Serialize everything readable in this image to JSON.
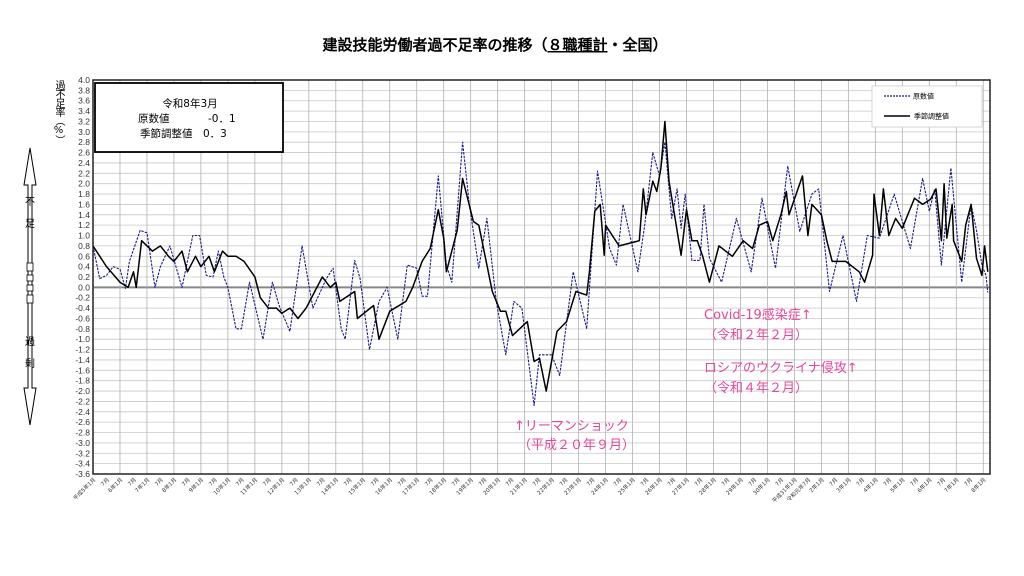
{
  "chart_data": {
    "type": "line",
    "title": "建設技能労働者過不足率の推移（８職種計・全国）",
    "title_parts": [
      "建設技能労働者過不足率の推移（",
      "８職種計",
      "・全国）"
    ],
    "ylabel": "過不足率（%）",
    "ylim": [
      -3.6,
      4.0
    ],
    "ystep": 0.2,
    "xlim": [
      1993.0,
      2026.25
    ],
    "grid": true,
    "legend_position": "top-right",
    "x_tick_labels": [
      "平成5年1月",
      "7月",
      "6年1月",
      "7月",
      "7年1月",
      "7月",
      "8年1月",
      "7月",
      "9年1月",
      "7月",
      "10年1月",
      "7月",
      "11年1月",
      "7月",
      "12年1月",
      "7月",
      "13年1月",
      "7月",
      "14年1月",
      "7月",
      "15年1月",
      "7月",
      "16年1月",
      "7月",
      "17年1月",
      "7月",
      "18年1月",
      "7月",
      "19年1月",
      "7月",
      "20年1月",
      "7月",
      "21年1月",
      "7月",
      "22年1月",
      "7月",
      "23年1月",
      "7月",
      "24年1月",
      "7月",
      "25年1月",
      "7月",
      "26年1月",
      "7月",
      "27年1月",
      "7月",
      "28年1月",
      "7月",
      "29年1月",
      "7月",
      "30年1月",
      "7月",
      "平成31年1月",
      "令和元年7月",
      "2年1月",
      "7月",
      "3年1月",
      "7月",
      "4年1月",
      "7月",
      "5年1月",
      "7月",
      "6年1月",
      "7月",
      "7年1月",
      "7月",
      "8年1月"
    ],
    "series": [
      {
        "name": "原数値",
        "color": "#1a1a8c",
        "style": "dashed",
        "points": [
          [
            1993.0,
            0.8
          ],
          [
            1993.25,
            0.17
          ],
          [
            1993.5,
            0.23
          ],
          [
            1993.75,
            0.4
          ],
          [
            1994.0,
            0.35
          ],
          [
            1994.2,
            -0.02
          ],
          [
            1994.35,
            0.5
          ],
          [
            1994.75,
            1.1
          ],
          [
            1995.0,
            1.05
          ],
          [
            1995.3,
            0.0
          ],
          [
            1995.5,
            0.4
          ],
          [
            1995.85,
            0.8
          ],
          [
            1996.3,
            0.0
          ],
          [
            1996.7,
            1.0
          ],
          [
            1996.95,
            1.0
          ],
          [
            1997.2,
            0.23
          ],
          [
            1997.45,
            0.2
          ],
          [
            1997.65,
            0.7
          ],
          [
            1997.85,
            0.2
          ],
          [
            1998.0,
            0.0
          ],
          [
            1998.3,
            -0.8
          ],
          [
            1998.5,
            -0.8
          ],
          [
            1998.8,
            0.1
          ],
          [
            1999.3,
            -1.0
          ],
          [
            1999.65,
            0.1
          ],
          [
            1999.9,
            -0.35
          ],
          [
            2000.3,
            -0.85
          ],
          [
            2000.75,
            0.8
          ],
          [
            2001.15,
            -0.4
          ],
          [
            2001.65,
            0.17
          ],
          [
            2001.9,
            0.37
          ],
          [
            2002.2,
            -0.8
          ],
          [
            2002.35,
            -1.0
          ],
          [
            2002.7,
            0.52
          ],
          [
            2002.9,
            0.17
          ],
          [
            2003.25,
            -1.2
          ],
          [
            2003.6,
            -0.27
          ],
          [
            2003.9,
            0.0
          ],
          [
            2004.3,
            -1.0
          ],
          [
            2004.65,
            0.43
          ],
          [
            2005.0,
            0.37
          ],
          [
            2005.2,
            -0.17
          ],
          [
            2005.4,
            -0.17
          ],
          [
            2005.8,
            2.15
          ],
          [
            2006.1,
            0.43
          ],
          [
            2006.3,
            0.1
          ],
          [
            2006.7,
            2.8
          ],
          [
            2006.95,
            1.6
          ],
          [
            2007.3,
            0.37
          ],
          [
            2007.6,
            1.33
          ],
          [
            2007.95,
            -0.27
          ],
          [
            2008.3,
            -1.3
          ],
          [
            2008.6,
            -0.27
          ],
          [
            2008.9,
            -0.4
          ],
          [
            2009.35,
            -2.28
          ],
          [
            2009.55,
            -1.3
          ],
          [
            2010.0,
            -1.3
          ],
          [
            2010.3,
            -1.7
          ],
          [
            2010.8,
            0.3
          ],
          [
            2011.3,
            -0.8
          ],
          [
            2011.7,
            2.24
          ],
          [
            2012.15,
            0.75
          ],
          [
            2012.4,
            0.43
          ],
          [
            2012.65,
            1.6
          ],
          [
            2013.2,
            0.3
          ],
          [
            2013.45,
            1.2
          ],
          [
            2013.75,
            2.6
          ],
          [
            2014.0,
            2.15
          ],
          [
            2014.2,
            2.8
          ],
          [
            2014.45,
            1.33
          ],
          [
            2014.65,
            1.9
          ],
          [
            2014.8,
            1.14
          ],
          [
            2014.95,
            1.8
          ],
          [
            2015.2,
            0.52
          ],
          [
            2015.5,
            0.52
          ],
          [
            2015.65,
            1.6
          ],
          [
            2015.85,
            0.56
          ],
          [
            2016.3,
            0.1
          ],
          [
            2016.85,
            1.33
          ],
          [
            2017.4,
            0.3
          ],
          [
            2017.8,
            1.72
          ],
          [
            2018.3,
            0.37
          ],
          [
            2018.75,
            2.34
          ],
          [
            2019.2,
            1.08
          ],
          [
            2019.65,
            1.8
          ],
          [
            2019.9,
            1.9
          ],
          [
            2020.3,
            -0.08
          ],
          [
            2020.8,
            1.0
          ],
          [
            2021.3,
            -0.27
          ],
          [
            2021.7,
            1.0
          ],
          [
            2022.15,
            0.95
          ],
          [
            2022.7,
            1.8
          ],
          [
            2023.3,
            0.75
          ],
          [
            2023.75,
            2.1
          ],
          [
            2024.0,
            1.47
          ],
          [
            2024.2,
            1.9
          ],
          [
            2024.45,
            0.43
          ],
          [
            2024.8,
            2.3
          ],
          [
            2025.2,
            0.1
          ],
          [
            2025.55,
            1.6
          ],
          [
            2025.75,
            1.1
          ],
          [
            2025.95,
            0.43
          ],
          [
            2026.1,
            0.23
          ],
          [
            2026.17,
            -0.1
          ]
        ]
      },
      {
        "name": "季節調整値",
        "color": "#000000",
        "style": "solid",
        "points": [
          [
            1993.0,
            0.8
          ],
          [
            1993.5,
            0.4
          ],
          [
            1994.0,
            0.1
          ],
          [
            1994.3,
            0.0
          ],
          [
            1994.5,
            0.3
          ],
          [
            1994.6,
            0.0
          ],
          [
            1994.8,
            0.9
          ],
          [
            1995.2,
            0.7
          ],
          [
            1995.5,
            0.8
          ],
          [
            1995.8,
            0.6
          ],
          [
            1996.0,
            0.5
          ],
          [
            1996.3,
            0.7
          ],
          [
            1996.5,
            0.3
          ],
          [
            1996.8,
            0.6
          ],
          [
            1997.0,
            0.4
          ],
          [
            1997.3,
            0.6
          ],
          [
            1997.5,
            0.3
          ],
          [
            1997.8,
            0.7
          ],
          [
            1998.0,
            0.6
          ],
          [
            1998.3,
            0.6
          ],
          [
            1998.6,
            0.5
          ],
          [
            1999.0,
            0.2
          ],
          [
            1999.2,
            -0.2
          ],
          [
            1999.5,
            -0.4
          ],
          [
            1999.8,
            -0.4
          ],
          [
            2000.0,
            -0.5
          ],
          [
            2000.3,
            -0.4
          ],
          [
            2000.6,
            -0.6
          ],
          [
            2000.9,
            -0.4
          ],
          [
            2001.2,
            -0.1
          ],
          [
            2001.5,
            0.2
          ],
          [
            2001.8,
            0.0
          ],
          [
            2002.0,
            0.1
          ],
          [
            2002.15,
            -0.27
          ],
          [
            2002.7,
            -0.08
          ],
          [
            2002.8,
            -0.6
          ],
          [
            2003.4,
            -0.35
          ],
          [
            2003.6,
            -1.0
          ],
          [
            2004.0,
            -0.46
          ],
          [
            2004.6,
            -0.27
          ],
          [
            2004.85,
            0.0
          ],
          [
            2005.2,
            0.5
          ],
          [
            2005.5,
            0.75
          ],
          [
            2005.8,
            1.5
          ],
          [
            2006.0,
            0.95
          ],
          [
            2006.1,
            0.3
          ],
          [
            2006.5,
            1.1
          ],
          [
            2006.7,
            2.1
          ],
          [
            2007.1,
            1.27
          ],
          [
            2007.3,
            1.2
          ],
          [
            2007.8,
            -0.08
          ],
          [
            2008.1,
            -0.46
          ],
          [
            2008.3,
            -0.46
          ],
          [
            2008.55,
            -0.93
          ],
          [
            2009.1,
            -0.66
          ],
          [
            2009.35,
            -1.43
          ],
          [
            2009.55,
            -1.37
          ],
          [
            2009.8,
            -2.0
          ],
          [
            2010.2,
            -0.85
          ],
          [
            2010.55,
            -0.66
          ],
          [
            2010.9,
            -0.08
          ],
          [
            2011.3,
            -0.15
          ],
          [
            2011.4,
            0.3
          ],
          [
            2011.6,
            1.47
          ],
          [
            2011.8,
            1.6
          ],
          [
            2011.95,
            0.62
          ],
          [
            2012.0,
            1.2
          ],
          [
            2012.5,
            0.8
          ],
          [
            2013.25,
            0.9
          ],
          [
            2013.4,
            1.9
          ],
          [
            2013.5,
            1.4
          ],
          [
            2013.75,
            2.05
          ],
          [
            2013.9,
            1.85
          ],
          [
            2014.05,
            2.3
          ],
          [
            2014.2,
            3.2
          ],
          [
            2014.35,
            2.05
          ],
          [
            2014.8,
            0.62
          ],
          [
            2015.0,
            1.5
          ],
          [
            2015.2,
            0.9
          ],
          [
            2015.4,
            0.9
          ],
          [
            2015.6,
            0.6
          ],
          [
            2015.85,
            0.1
          ],
          [
            2016.2,
            0.8
          ],
          [
            2016.7,
            0.6
          ],
          [
            2017.1,
            0.9
          ],
          [
            2017.45,
            0.75
          ],
          [
            2017.7,
            1.2
          ],
          [
            2018.0,
            1.27
          ],
          [
            2018.2,
            0.9
          ],
          [
            2018.5,
            1.4
          ],
          [
            2018.7,
            1.85
          ],
          [
            2018.8,
            1.4
          ],
          [
            2019.3,
            2.15
          ],
          [
            2019.5,
            1.0
          ],
          [
            2019.65,
            1.6
          ],
          [
            2020.0,
            1.4
          ],
          [
            2020.2,
            0.9
          ],
          [
            2020.4,
            0.5
          ],
          [
            2020.9,
            0.5
          ],
          [
            2021.4,
            0.3
          ],
          [
            2021.6,
            0.1
          ],
          [
            2021.9,
            0.62
          ],
          [
            2021.95,
            1.8
          ],
          [
            2022.15,
            1.0
          ],
          [
            2022.3,
            1.9
          ],
          [
            2022.5,
            1.0
          ],
          [
            2022.75,
            1.33
          ],
          [
            2023.0,
            1.14
          ],
          [
            2023.45,
            1.72
          ],
          [
            2023.75,
            1.6
          ],
          [
            2024.05,
            1.7
          ],
          [
            2024.25,
            1.9
          ],
          [
            2024.45,
            0.9
          ],
          [
            2024.55,
            2.0
          ],
          [
            2024.65,
            0.95
          ],
          [
            2024.85,
            1.6
          ],
          [
            2024.9,
            0.9
          ],
          [
            2025.2,
            0.5
          ],
          [
            2025.35,
            1.2
          ],
          [
            2025.55,
            1.6
          ],
          [
            2025.75,
            0.56
          ],
          [
            2025.95,
            0.23
          ],
          [
            2026.05,
            0.8
          ],
          [
            2026.17,
            0.3
          ]
        ]
      }
    ],
    "info_box": {
      "date": "令和8年3月",
      "raw_label": "原数値",
      "raw_value": "-0．1",
      "sa_label": "季節調整値",
      "sa_value": "0．3"
    },
    "annotations": [
      {
        "lines": [
          "↑リーマンショック",
          "（平成２０年９月）"
        ]
      },
      {
        "lines": [
          "Covid-19感染症↑",
          "（令和２年２月）"
        ]
      },
      {
        "lines": [
          "ロシアのウクライナ侵攻↑",
          "（令和４年２月）"
        ]
      }
    ],
    "side_axis": {
      "top": "不足",
      "bottom": "過剰"
    },
    "annotation_color": "#e8469a"
  }
}
